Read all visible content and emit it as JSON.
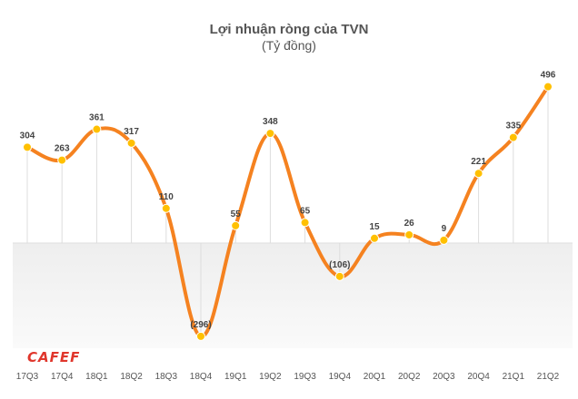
{
  "chart_data": {
    "type": "line",
    "title": "Lợi nhuận ròng của TVN",
    "subtitle": "(Tỷ đồng)",
    "categories": [
      "17Q3",
      "17Q4",
      "18Q1",
      "18Q2",
      "18Q3",
      "18Q4",
      "19Q1",
      "19Q2",
      "19Q3",
      "19Q4",
      "20Q1",
      "20Q2",
      "20Q3",
      "20Q4",
      "21Q1",
      "21Q2"
    ],
    "series": [
      {
        "values": [
          304,
          263,
          361,
          317,
          110,
          -296,
          55,
          348,
          65,
          -106,
          15,
          26,
          9,
          221,
          335,
          496
        ],
        "labels": [
          "304",
          "263",
          "361",
          "317",
          "110",
          "(296)",
          "55",
          "348",
          "65",
          "(106)",
          "15",
          "26",
          "9",
          "221",
          "335",
          "496"
        ]
      }
    ],
    "ylim": [
      -350,
      500
    ],
    "line_color": "#F58220",
    "marker_color": "#FFC000",
    "grid": false
  },
  "brand": {
    "logo_text": "CAFEF",
    "logo_color": "#E0362C"
  }
}
